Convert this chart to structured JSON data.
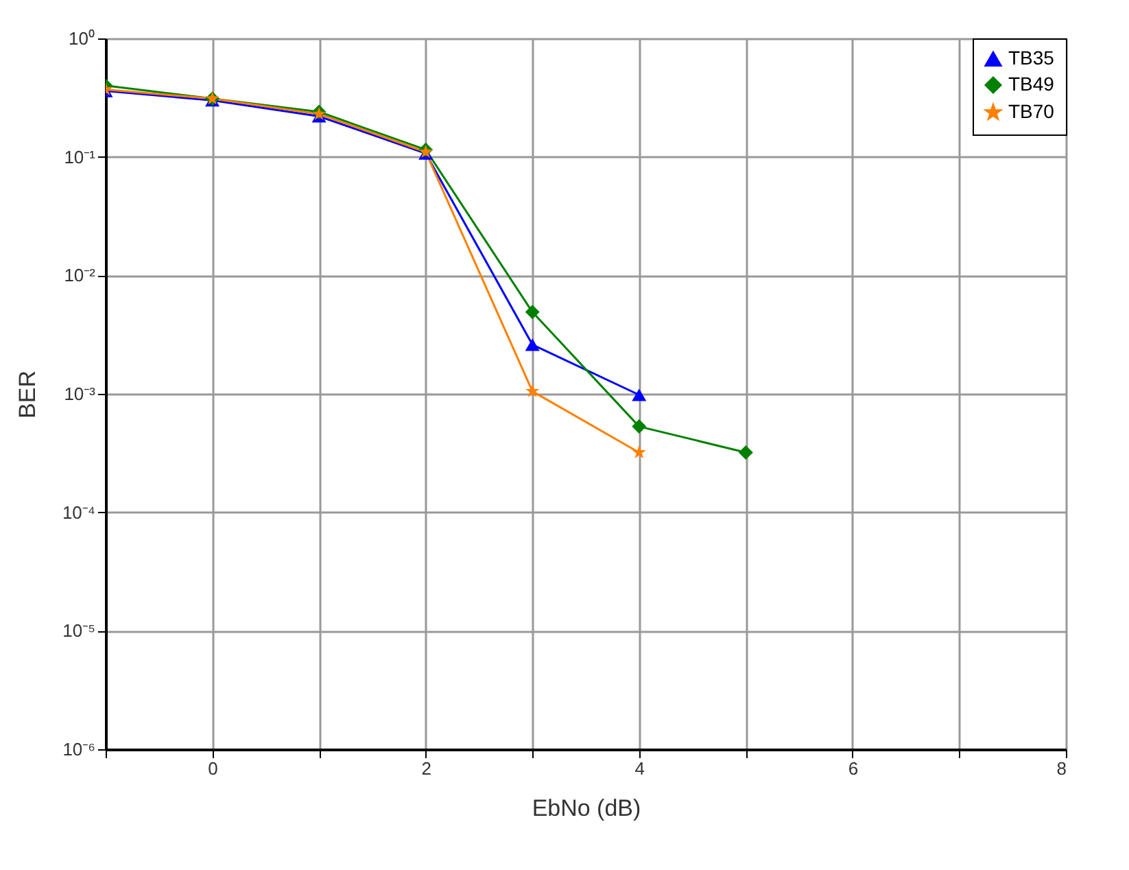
{
  "chart_data": {
    "type": "line",
    "xlabel": "EbNo (dB)",
    "ylabel": "BER",
    "log": "y",
    "grid": true,
    "legend": "top right",
    "line_style": "solid",
    "xlim": [
      -1,
      8
    ],
    "xticks": [
      {
        "value": -1,
        "label": null
      },
      0,
      {
        "value": 1,
        "label": null
      },
      2,
      {
        "value": 3,
        "label": null
      },
      4,
      {
        "value": 5,
        "label": null
      },
      6,
      {
        "value": 7,
        "label": null
      },
      8
    ],
    "ylim": [
      1e-06,
      1
    ],
    "yticks": [
      {
        "value": 1e-06,
        "label": "10⁻⁶"
      },
      {
        "value": 1e-05,
        "label": "10⁻⁵"
      },
      {
        "value": 0.0001,
        "label": "10⁻⁴"
      },
      {
        "value": 0.001,
        "label": "10⁻³"
      },
      {
        "value": 0.01,
        "label": "10⁻²"
      },
      {
        "value": 0.1,
        "label": "10⁻¹"
      },
      {
        "value": 1,
        "label": "10⁰"
      }
    ],
    "series": [
      {
        "name": "TB35",
        "color": "#0000ff",
        "marker": "triangle",
        "x": [
          -1,
          0,
          1,
          2,
          3,
          4
        ],
        "values": [
          0.36,
          0.3,
          0.22,
          0.107,
          0.0026,
          0.00098
        ]
      },
      {
        "name": "TB49",
        "color": "#008000",
        "marker": "diamond",
        "x": [
          -1,
          0,
          1,
          2,
          3,
          4,
          5
        ],
        "values": [
          0.4,
          0.31,
          0.24,
          0.115,
          0.0049,
          0.00053,
          0.00032
        ]
      },
      {
        "name": "TB70",
        "color": "#ff8000",
        "marker": "star",
        "x": [
          -1,
          0,
          1,
          2,
          3,
          4
        ],
        "values": [
          0.37,
          0.31,
          0.23,
          0.11,
          0.00105,
          0.00032
        ]
      }
    ]
  }
}
